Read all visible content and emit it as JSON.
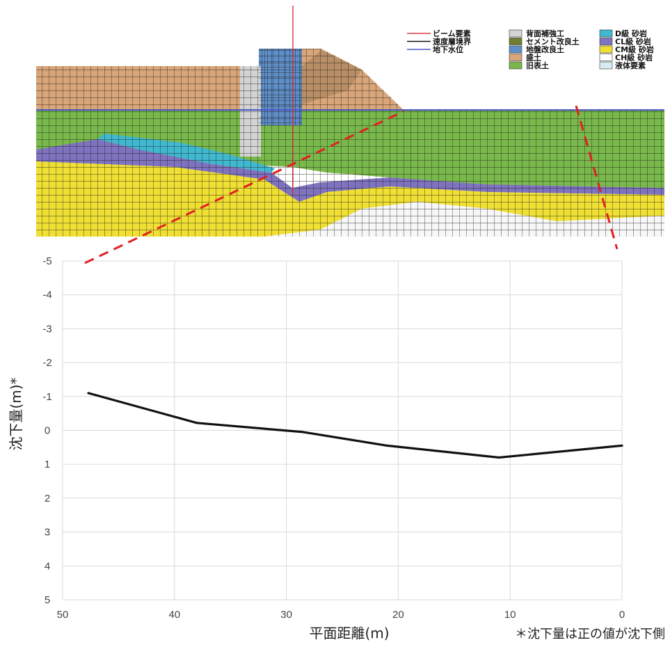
{
  "colors": {
    "beam": "#d83a4a",
    "velocity_boundary": "#111111",
    "groundwater": "#4a55c8",
    "surface_reinforcement": "#d4d4d4",
    "cement_improved": "#6f7f32",
    "ground_improved": "#5f8fc8",
    "fill": "#d9a679",
    "old_topsoil": "#79b84a",
    "d_sandstone": "#3fb8d0",
    "cl_sandstone": "#7f73c0",
    "cm_sandstone": "#f0e033",
    "ch_sandstone": "#ffffff",
    "liquid": "#d6ecf2",
    "leader": "#e02020",
    "curve": "#111111",
    "grid": "#d9d9d9"
  },
  "legend": {
    "col1": [
      {
        "label": "ビーム要素",
        "kind": "line",
        "color_key": "beam"
      },
      {
        "label": "速度層境界",
        "kind": "line",
        "color_key": "velocity_boundary"
      },
      {
        "label": "地下水位",
        "kind": "line",
        "color_key": "groundwater"
      }
    ],
    "col2": [
      {
        "label": "背面補強工",
        "kind": "box",
        "color_key": "surface_reinforcement"
      },
      {
        "label": "セメント改良土",
        "kind": "box",
        "color_key": "cement_improved"
      },
      {
        "label": "地盤改良土",
        "kind": "box",
        "color_key": "ground_improved"
      },
      {
        "label": "盛土",
        "kind": "box",
        "color_key": "fill"
      },
      {
        "label": "旧表土",
        "kind": "box",
        "color_key": "old_topsoil"
      }
    ],
    "col3": [
      {
        "label": "D級 砂岩",
        "kind": "box",
        "color_key": "d_sandstone"
      },
      {
        "label": "CL級 砂岩",
        "kind": "box",
        "color_key": "cl_sandstone"
      },
      {
        "label": "CM級 砂岩",
        "kind": "box",
        "color_key": "cm_sandstone"
      },
      {
        "label": "CH級 砂岩",
        "kind": "box",
        "color_key": "ch_sandstone"
      },
      {
        "label": "液体要素",
        "kind": "box",
        "color_key": "liquid"
      }
    ]
  },
  "chart_data": {
    "type": "line",
    "title": "",
    "xlabel": "平面距離(m)",
    "ylabel": "沈下量(m)*",
    "xlim": [
      50,
      0
    ],
    "ylim": [
      -5,
      5
    ],
    "x_reversed": true,
    "y_reversed": true,
    "xticks": [
      50,
      40,
      30,
      20,
      10,
      0
    ],
    "yticks": [
      -5,
      -4,
      -3,
      -2,
      -1,
      0,
      1,
      2,
      3,
      4,
      5
    ],
    "grid": true,
    "series": [
      {
        "x": [
          47.7,
          38,
          28.5,
          21,
          11,
          0
        ],
        "y": [
          -1.1,
          -0.22,
          0.05,
          0.45,
          0.8,
          0.45
        ]
      }
    ],
    "note": "＊沈下量は正の値が沈下側"
  }
}
